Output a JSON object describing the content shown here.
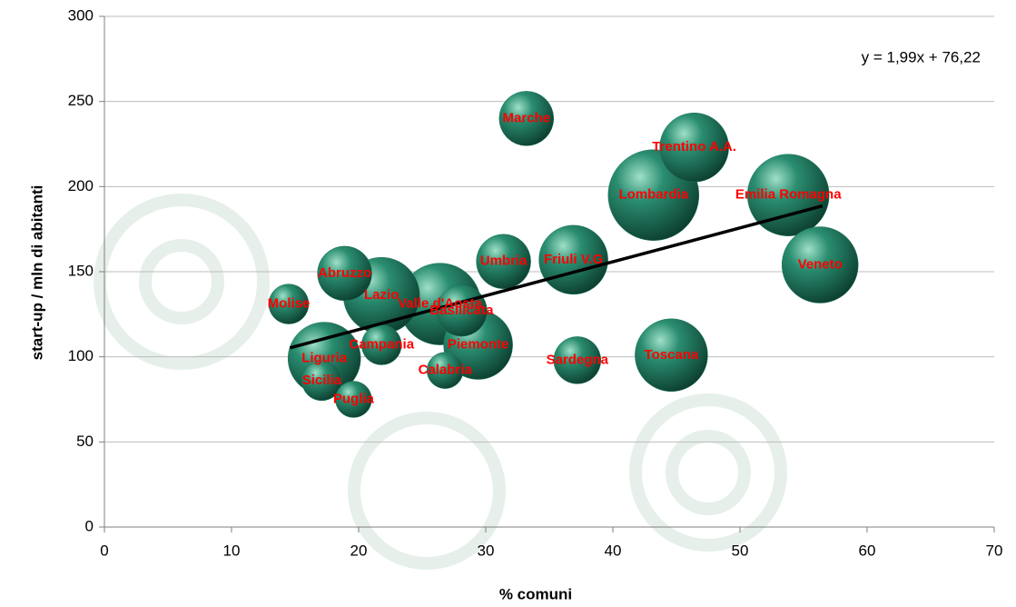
{
  "chart_data": {
    "type": "bubble",
    "x_label": "% comuni",
    "y_label": "start-up / mln di abitanti",
    "labels": [
      "Lombardia",
      "Emilia Romagna",
      "Valle d'Aosta",
      "Veneto",
      "Lazio",
      "Liguria",
      "Toscana",
      "Trentino A.A.",
      "Friuli V.G",
      "Piemonte",
      "Abruzzo",
      "Marche",
      "Umbria",
      "Basilicata",
      "Sardegna",
      "Molise",
      "Campania",
      "Sicilia",
      "Calabria",
      "Puglia"
    ],
    "x": [
      43.2,
      53.8,
      26.4,
      56.3,
      21.8,
      17.3,
      44.6,
      46.4,
      36.9,
      29.4,
      18.9,
      33.2,
      31.4,
      28.1,
      37.2,
      14.5,
      21.8,
      17.1,
      26.8,
      19.6
    ],
    "values": [
      195,
      195,
      131,
      154,
      136,
      99,
      101,
      223,
      157,
      107,
      149,
      240,
      156,
      127,
      98,
      131,
      107,
      86,
      92,
      75
    ],
    "sizes": [
      50,
      45,
      45,
      42,
      42,
      40,
      40,
      38,
      38,
      38,
      30,
      30,
      30,
      28,
      26,
      22,
      22,
      22,
      20,
      20
    ],
    "color": "#1f7a60",
    "label_color": "#ff0000",
    "xlim": [
      0,
      70
    ],
    "xticks": [
      0,
      10,
      20,
      30,
      40,
      50,
      60,
      70
    ],
    "ylim": [
      0,
      300
    ],
    "yticks": [
      0,
      50,
      100,
      150,
      200,
      250,
      300
    ],
    "grid": true,
    "trendline": {
      "slope": 1.99,
      "intercept": 76.22,
      "xrange": [
        14.6,
        56.5
      ],
      "label": "y = 1,99x + 76,22"
    }
  }
}
